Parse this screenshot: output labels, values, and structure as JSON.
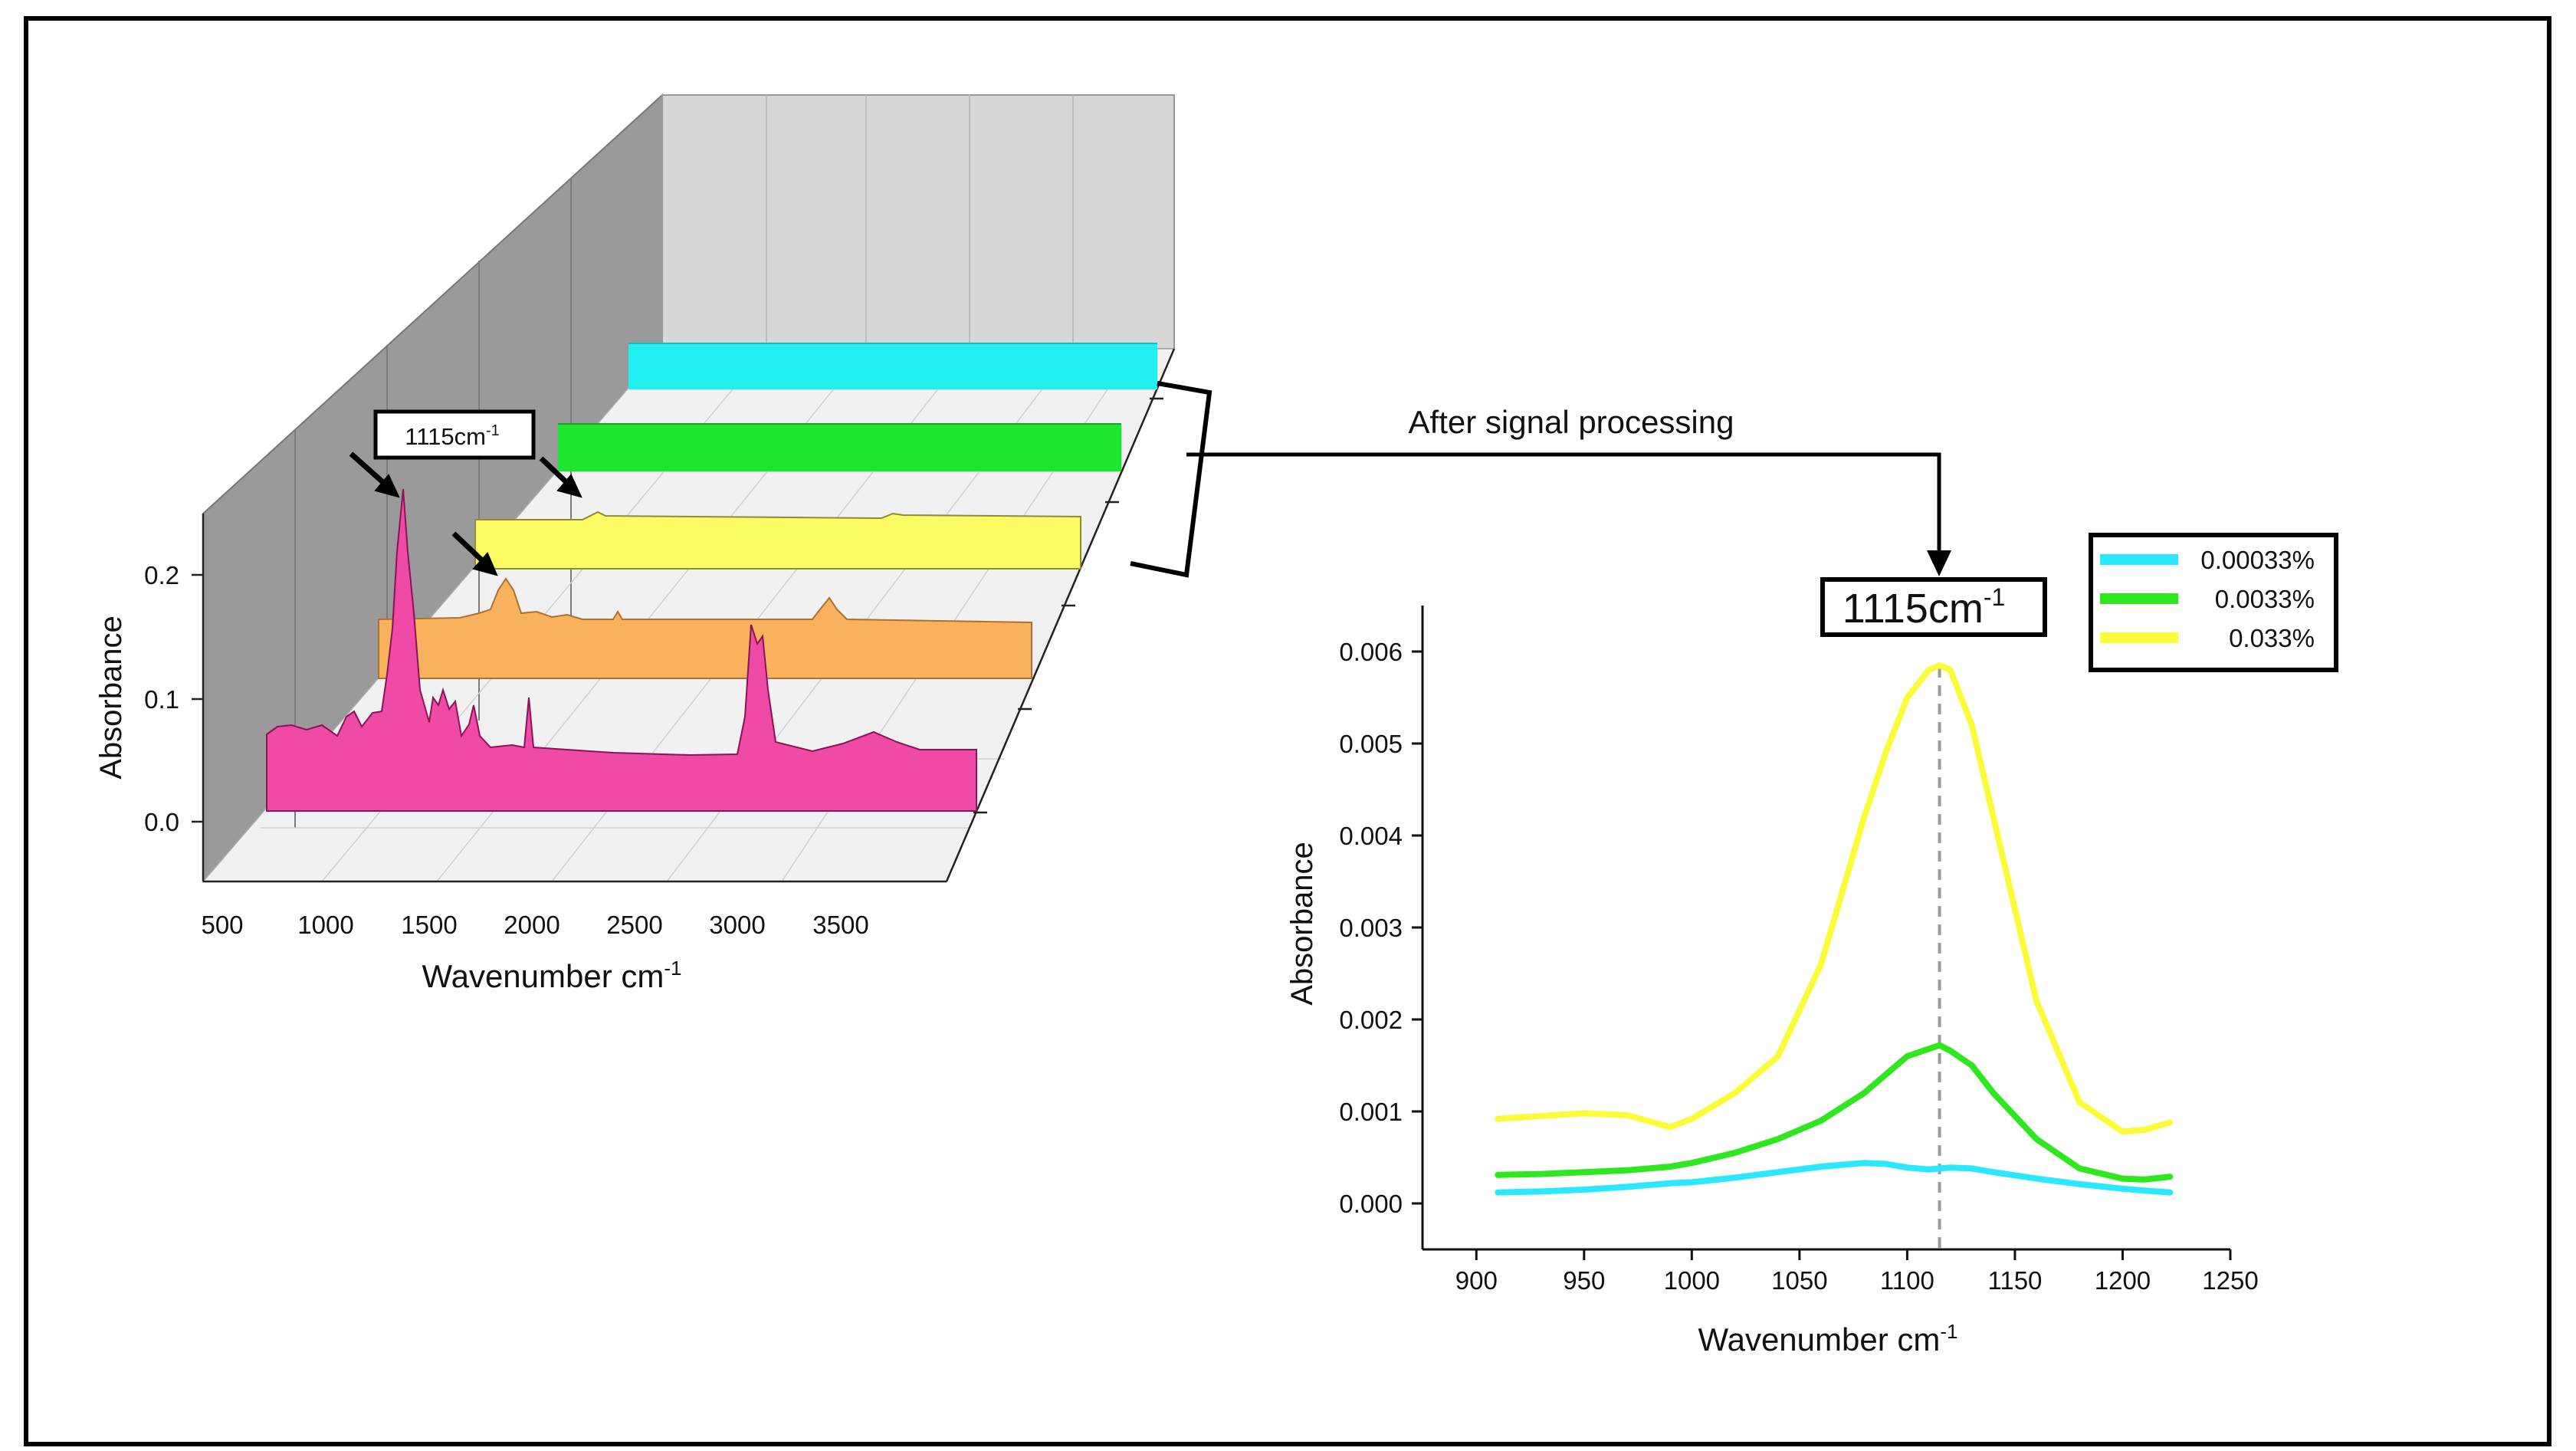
{
  "left_chart": {
    "type": "waterfall-3d",
    "ylabel": "Absorbance",
    "xlabel": "Wavenumber cm",
    "xlabel_sup": "-1",
    "x_ticks": [
      "500",
      "1000",
      "1500",
      "2000",
      "2500",
      "3000",
      "3500"
    ],
    "y_ticks": [
      "0.0",
      "0.1",
      "0.2"
    ],
    "annotation": {
      "text": "1115cm",
      "sup": "-1"
    },
    "series_colors": [
      "#ee4aa6",
      "#f8b15c",
      "#fbfb63",
      "#1ee62c",
      "#21f0f3"
    ]
  },
  "connector": {
    "label": "After signal processing"
  },
  "chart_data": {
    "type": "line",
    "title": "",
    "xlabel": "Wavenumber cm",
    "xlabel_sup": "-1",
    "ylabel": "Absorbance",
    "xlim": [
      875,
      1250
    ],
    "ylim": [
      -0.0005,
      0.0065
    ],
    "x_ticks": [
      900,
      950,
      1000,
      1050,
      1100,
      1150,
      1200,
      1250
    ],
    "y_ticks": [
      0.0,
      0.001,
      0.002,
      0.003,
      0.004,
      0.005,
      0.006
    ],
    "y_tick_labels": [
      "0.000",
      "0.001",
      "0.002",
      "0.003",
      "0.004",
      "0.005",
      "0.006"
    ],
    "vline_x": 1115,
    "annotation": {
      "text": "1115cm",
      "sup": "-1"
    },
    "legend_position": "top-right",
    "x": [
      910,
      930,
      950,
      970,
      990,
      1000,
      1020,
      1040,
      1060,
      1080,
      1090,
      1100,
      1110,
      1115,
      1120,
      1130,
      1140,
      1160,
      1180,
      1200,
      1210,
      1222
    ],
    "series": [
      {
        "name": "0.00033%",
        "color": "#2be7ff",
        "values": [
          0.00012,
          0.00013,
          0.00015,
          0.00018,
          0.00022,
          0.00023,
          0.00028,
          0.00034,
          0.0004,
          0.00044,
          0.00043,
          0.00039,
          0.00037,
          0.00038,
          0.00039,
          0.00038,
          0.00034,
          0.00027,
          0.00021,
          0.00016,
          0.00014,
          0.00012
        ]
      },
      {
        "name": "0.0033%",
        "color": "#2ee71e",
        "values": [
          0.00031,
          0.00032,
          0.00034,
          0.00036,
          0.0004,
          0.00044,
          0.00055,
          0.0007,
          0.0009,
          0.0012,
          0.0014,
          0.0016,
          0.00168,
          0.00172,
          0.00166,
          0.0015,
          0.0012,
          0.0007,
          0.00038,
          0.00027,
          0.00026,
          0.00029
        ]
      },
      {
        "name": "0.033%",
        "color": "#fbfb3a",
        "values": [
          0.00092,
          0.00095,
          0.00098,
          0.00096,
          0.00083,
          0.00092,
          0.0012,
          0.0016,
          0.0026,
          0.0042,
          0.0049,
          0.0055,
          0.0058,
          0.00585,
          0.0058,
          0.0052,
          0.0042,
          0.0022,
          0.0011,
          0.00078,
          0.0008,
          0.00088
        ]
      }
    ]
  }
}
